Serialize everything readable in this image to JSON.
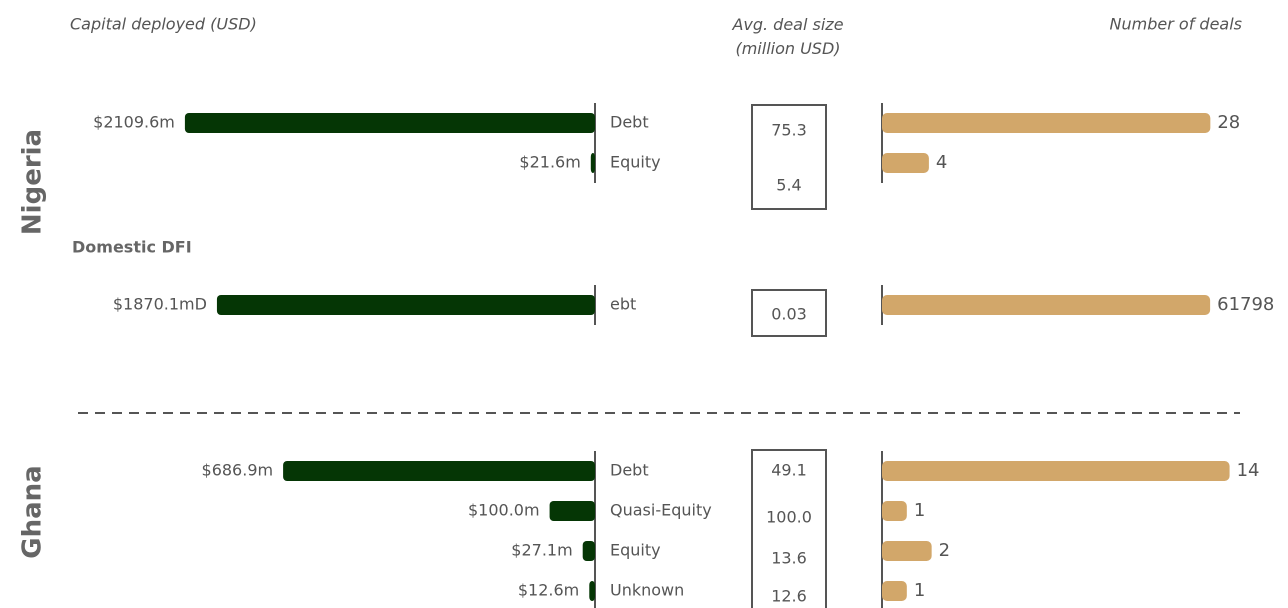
{
  "chart_data": {
    "type": "bar",
    "column_titles": [
      "Capital deployed (USD)",
      "Avg. deal size\n(million USD)",
      "Number of deals"
    ],
    "capital_color": "#053605",
    "deals_color": "#d2a76a",
    "sections": [
      {
        "label": "Nigeria",
        "categories": [
          "Debt",
          "Equity"
        ],
        "capital": {
          "values": [
            2109.6,
            21.6
          ],
          "value_labels": [
            "$2109.6m",
            "$21.6m"
          ],
          "xlim": [
            0,
            2212
          ]
        },
        "avg": {
          "values": [
            75.3,
            5.4
          ],
          "value_labels": [
            "75.3",
            "5.4"
          ]
        },
        "deals": {
          "values": [
            28,
            4
          ],
          "xlim": [
            0,
            30.7
          ]
        }
      },
      {
        "label": "Domestic DFI",
        "categories": [
          "ebt"
        ],
        "capital": {
          "values": [
            1870.1
          ],
          "value_labels": [
            "$1870.1mD"
          ],
          "xlim": [
            0,
            2127
          ]
        },
        "avg": {
          "values": [
            0.03
          ],
          "value_labels": [
            "0.03"
          ]
        },
        "deals": {
          "values": [
            61798
          ],
          "xlim": [
            0,
            67800
          ]
        }
      },
      {
        "label": "Ghana",
        "categories": [
          "Debt",
          "Quasi-Equity",
          "Equity",
          "Unknown"
        ],
        "capital": {
          "values": [
            686.9,
            100.0,
            27.1,
            12.6
          ],
          "value_labels": [
            "$686.9m",
            "$100.0m",
            "$27.1m",
            "$12.6m"
          ],
          "xlim": [
            0,
            947
          ]
        },
        "avg": {
          "values": [
            49.1,
            100.0,
            13.6,
            12.6
          ],
          "value_labels": [
            "49.1",
            "100.0",
            "13.6",
            "12.6"
          ]
        },
        "deals": {
          "values": [
            14,
            1,
            2,
            1
          ],
          "xlim": [
            0,
            14.5
          ]
        }
      }
    ]
  }
}
